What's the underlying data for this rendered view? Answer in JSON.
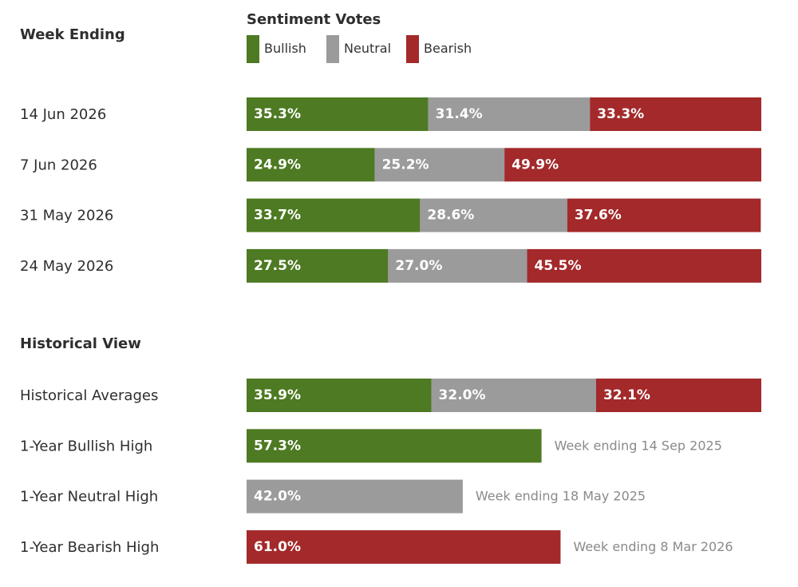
{
  "chart_data": {
    "type": "bar",
    "orientation": "horizontal",
    "stacked": true,
    "title": "Sentiment Votes",
    "row_header": "Week Ending",
    "xlim": [
      0,
      100
    ],
    "unit": "%",
    "grid": false,
    "legend_position": "top",
    "series": [
      {
        "name": "Bullish",
        "color": "#4d7a22"
      },
      {
        "name": "Neutral",
        "color": "#9b9b9b"
      },
      {
        "name": "Bearish",
        "color": "#a3292b"
      }
    ],
    "weekly": [
      {
        "label": "14 Jun 2026",
        "values": [
          35.3,
          31.4,
          33.3
        ]
      },
      {
        "label": "7 Jun 2026",
        "values": [
          24.9,
          25.2,
          49.9
        ]
      },
      {
        "label": "31 May 2026",
        "values": [
          33.7,
          28.6,
          37.6
        ]
      },
      {
        "label": "24 May 2026",
        "values": [
          27.5,
          27.0,
          45.5
        ]
      }
    ],
    "historical_header": "Historical View",
    "historical": [
      {
        "label": "Historical Averages",
        "values": [
          35.9,
          32.0,
          32.1
        ]
      },
      {
        "label": "1-Year Bullish High",
        "series": "Bullish",
        "value": 57.3,
        "note": "Week ending 14 Sep 2025"
      },
      {
        "label": "1-Year Neutral High",
        "series": "Neutral",
        "value": 42.0,
        "note": "Week ending 18 May 2025"
      },
      {
        "label": "1-Year Bearish High",
        "series": "Bearish",
        "value": 61.0,
        "note": "Week ending 8 Mar 2026"
      }
    ]
  }
}
